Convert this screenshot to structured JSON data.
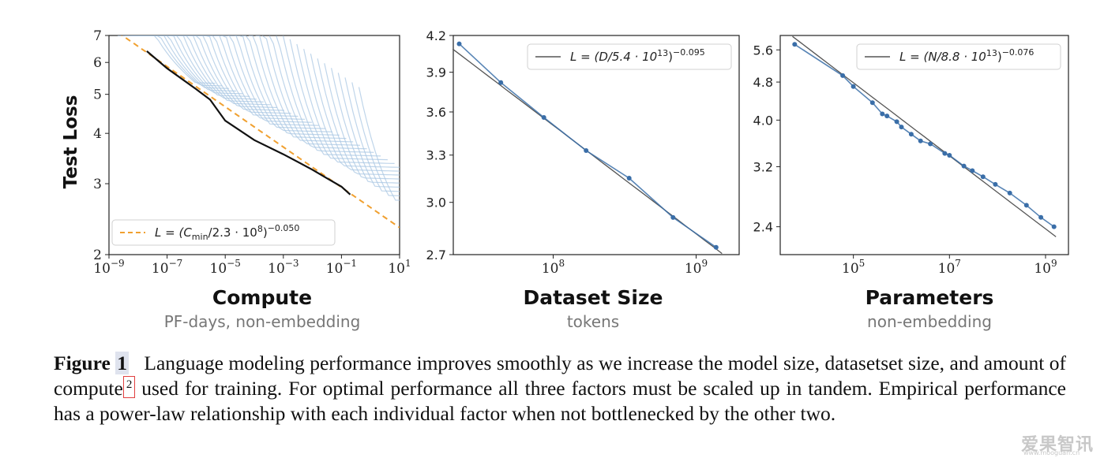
{
  "chart_data": [
    {
      "type": "line",
      "xscale": "log",
      "yscale": "log",
      "xlim": [
        "1e-9",
        "1e1"
      ],
      "ylim": [
        2,
        7
      ],
      "x_ticks": [
        {
          "base": "10",
          "exp": "−9"
        },
        {
          "base": "10",
          "exp": "−7"
        },
        {
          "base": "10",
          "exp": "−5"
        },
        {
          "base": "10",
          "exp": "−3"
        },
        {
          "base": "10",
          "exp": "−1"
        },
        {
          "base": "10",
          "exp": "1"
        }
      ],
      "y_ticks": [
        "2",
        "3",
        "4",
        "5",
        "6",
        "7"
      ],
      "xlabel": "Compute",
      "xsublabel": "PF-days, non-embedding",
      "ylabel": "Test Loss",
      "legend": {
        "placement": "bottom-left",
        "entry": {
          "prefix": "L = (C",
          "sub": "min",
          "mid": "/2.3 · 10",
          "sup_mid": "8",
          "suffix": ")",
          "sup": "−0.050"
        }
      },
      "fit": {
        "scale": "2.3e8",
        "exponent": -0.05,
        "color": "#f0a030",
        "style": "dashed"
      },
      "frontier": {
        "color": "#111111",
        "x": [
          "2e-8",
          "1e-7",
          "1e-6",
          "3e-6",
          "1e-5",
          "1e-4",
          "1e-3",
          "1e-2",
          "3e-2",
          "1e-1",
          "2e-1"
        ],
        "y": [
          6.4,
          5.8,
          5.15,
          4.85,
          4.3,
          3.85,
          3.55,
          3.25,
          3.1,
          2.95,
          2.82
        ]
      },
      "runs": {
        "count": 36,
        "color": "#a9c7e3"
      }
    },
    {
      "type": "line",
      "xscale": "log",
      "yscale": "log",
      "xlim": [
        "2e7",
        "2e9"
      ],
      "ylim": [
        2.7,
        4.2
      ],
      "x_ticks": [
        {
          "base": "10",
          "exp": "8"
        },
        {
          "base": "10",
          "exp": "9"
        }
      ],
      "y_ticks": [
        "2.7",
        "3.0",
        "3.3",
        "3.6",
        "3.9",
        "4.2"
      ],
      "xlabel": "Dataset Size",
      "xsublabel": "tokens",
      "legend": {
        "placement": "top-right",
        "entry": {
          "prefix": "L = (D/5.4 · 10",
          "sup_mid": "13",
          "suffix": ")",
          "sup": "−0.095"
        }
      },
      "fit": {
        "scale": "5.4e13",
        "exponent": -0.095,
        "color": "#555555"
      },
      "series": [
        {
          "color": "#3a6ea8",
          "x": [
            "2.2e7",
            "4.3e7",
            "8.6e7",
            "1.7e8",
            "3.4e8",
            "6.9e8",
            "1.38e9"
          ],
          "y": [
            4.13,
            3.82,
            3.56,
            3.33,
            3.15,
            2.91,
            2.74
          ]
        }
      ]
    },
    {
      "type": "line",
      "xscale": "log",
      "yscale": "log",
      "xlim": [
        "3e3",
        "3e9"
      ],
      "ylim": [
        2.1,
        6.0
      ],
      "x_ticks": [
        {
          "base": "10",
          "exp": "5"
        },
        {
          "base": "10",
          "exp": "7"
        },
        {
          "base": "10",
          "exp": "9"
        }
      ],
      "y_ticks": [
        "2.4",
        "3.2",
        "4.0",
        "4.8",
        "5.6"
      ],
      "xlabel": "Parameters",
      "xsublabel": "non-embedding",
      "legend": {
        "placement": "top-right",
        "entry": {
          "prefix": "L = (N/8.8 · 10",
          "sup_mid": "13",
          "suffix": ")",
          "sup": "−0.076"
        }
      },
      "fit": {
        "scale": "8.8e13",
        "exponent": -0.076,
        "color": "#555555"
      },
      "series": [
        {
          "color": "#3a6ea8",
          "x": [
            "6e3",
            "6e4",
            "1e5",
            "2.5e5",
            "4e5",
            "5e5",
            "8e5",
            "1e6",
            "1.6e6",
            "2.5e6",
            "4e6",
            "8e6",
            "1e7",
            "2e7",
            "3e7",
            "5e7",
            "9e7",
            "1.8e8",
            "4e8",
            "8e8",
            "1.5e9"
          ],
          "y": [
            5.75,
            4.95,
            4.7,
            4.35,
            4.12,
            4.08,
            3.97,
            3.87,
            3.74,
            3.62,
            3.57,
            3.41,
            3.38,
            3.21,
            3.14,
            3.05,
            2.94,
            2.82,
            2.66,
            2.51,
            2.4
          ]
        }
      ]
    }
  ],
  "caption": {
    "label": "Figure",
    "number": "1",
    "part1": "Language modeling performance improves smoothly as we increase the model size, datasetset size, and amount of compute",
    "footnote": "2",
    "part2": " used for training. For optimal performance all three factors must be scaled up in tandem. Empirical performance has a power-law relationship with each individual factor when not bottlenecked by the other two."
  },
  "watermark": {
    "text": "爱果智讯",
    "sub": "www.mooguan.cn"
  }
}
